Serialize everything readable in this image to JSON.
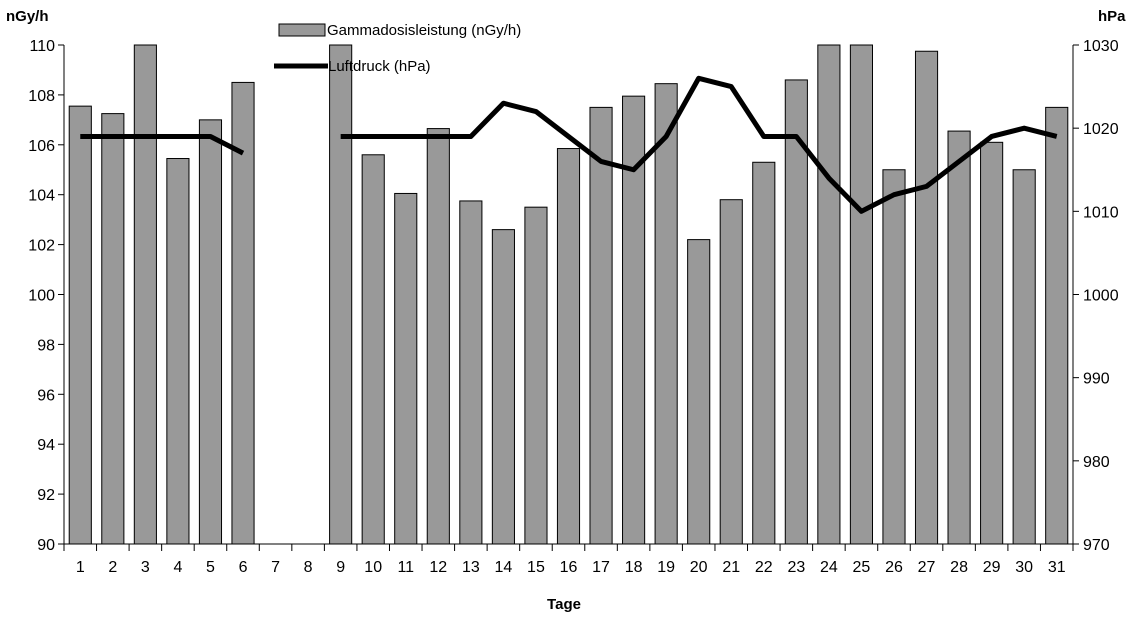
{
  "chart_data": {
    "type": "bar",
    "xlabel": "Tage",
    "y_left_unit": "nGy/h",
    "y_right_unit": "hPa",
    "ylim_left": [
      90,
      110
    ],
    "ylim_right": [
      970,
      1030
    ],
    "yticks_left": [
      "90",
      "92",
      "94",
      "96",
      "98",
      "100",
      "102",
      "104",
      "106",
      "108",
      "110"
    ],
    "yticks_right": [
      "970",
      "980",
      "990",
      "1000",
      "1010",
      "1020",
      "1030"
    ],
    "categories": [
      "1",
      "2",
      "3",
      "4",
      "5",
      "6",
      "7",
      "8",
      "9",
      "10",
      "11",
      "12",
      "13",
      "14",
      "15",
      "16",
      "17",
      "18",
      "19",
      "20",
      "21",
      "22",
      "23",
      "24",
      "25",
      "26",
      "27",
      "28",
      "29",
      "30",
      "31"
    ],
    "legend_placement": "top-center",
    "grid": false,
    "series": [
      {
        "name": "Gammadosisleistung (nGy/h)",
        "type": "bar",
        "axis": "left",
        "color": "#999999",
        "values": [
          107.55,
          107.25,
          110.0,
          105.45,
          107.0,
          108.5,
          null,
          null,
          110.0,
          105.6,
          104.05,
          106.65,
          103.75,
          102.6,
          103.5,
          105.85,
          107.5,
          107.95,
          108.45,
          102.2,
          103.8,
          105.3,
          108.6,
          110.0,
          110.0,
          105.0,
          109.75,
          106.55,
          106.1,
          105.0,
          107.5
        ]
      },
      {
        "name": "Luftdruck (hPa)",
        "type": "line",
        "axis": "right",
        "color": "#000000",
        "values": [
          1019,
          1019,
          1019,
          1019,
          1019,
          1017,
          null,
          null,
          1019,
          1019,
          1019,
          1019,
          1019,
          1023,
          1022,
          1019,
          1016,
          1015,
          1019,
          1026,
          1025,
          1019,
          1019,
          1014,
          1010,
          1012,
          1013,
          1016,
          1019,
          1020,
          1019
        ]
      }
    ]
  }
}
